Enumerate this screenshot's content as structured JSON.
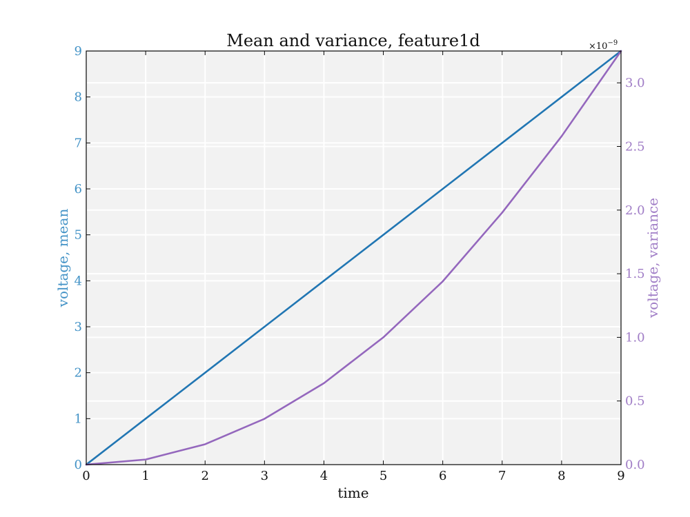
{
  "chart_data": {
    "type": "line",
    "title": "Mean and variance, feature1d",
    "xlabel": "time",
    "ylabel": "voltage, mean",
    "y2label": "voltage, variance",
    "x": [
      0,
      1,
      2,
      3,
      4,
      5,
      6,
      7,
      8,
      9
    ],
    "xlim": [
      0,
      9
    ],
    "ylim": [
      0,
      9
    ],
    "y2lim": [
      0,
      3.25
    ],
    "y2_offset_text": "×10",
    "y2_offset_exponent": "−9",
    "x_ticks": [
      "0",
      "1",
      "2",
      "3",
      "4",
      "5",
      "6",
      "7",
      "8",
      "9"
    ],
    "y_ticks": [
      "0",
      "1",
      "2",
      "3",
      "4",
      "5",
      "6",
      "7",
      "8",
      "9"
    ],
    "y2_ticks": [
      "0.0",
      "0.5",
      "1.0",
      "1.5",
      "2.0",
      "2.5",
      "3.0"
    ],
    "grid": true,
    "series": [
      {
        "axis": "left",
        "color": "#2176b3",
        "values": [
          0,
          1,
          2,
          3,
          4,
          5,
          6,
          7,
          8,
          9
        ]
      },
      {
        "axis": "right",
        "color": "#9467bd",
        "values": [
          0,
          0.04,
          0.16,
          0.36,
          0.64,
          1.0,
          1.44,
          1.98,
          2.58,
          3.25
        ]
      }
    ],
    "colors": {
      "left_axis": "#4292c6",
      "right_axis": "#a07dc6",
      "plot_bg": "#f2f2f2",
      "grid": "#ffffff"
    }
  }
}
